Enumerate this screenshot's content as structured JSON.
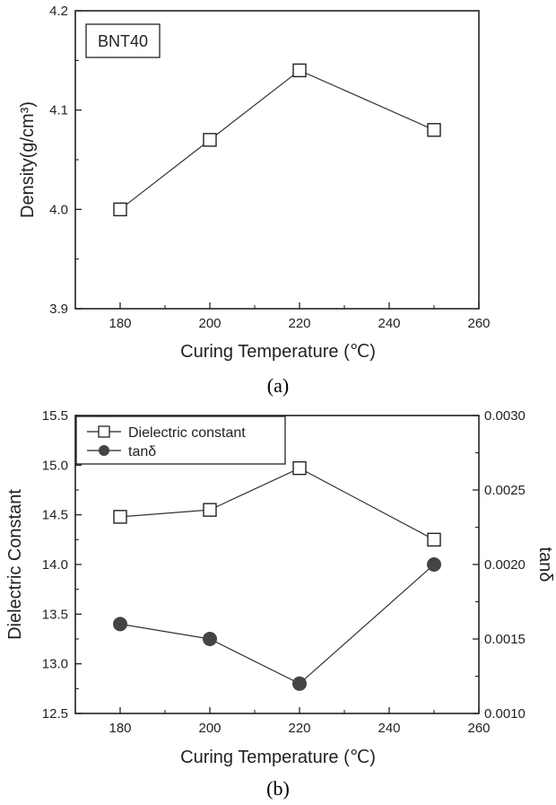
{
  "chart_data": [
    {
      "type": "line",
      "panel_label": "(a)",
      "annotation": "BNT40",
      "xlabel": "Curing Temperature (℃)",
      "ylabel": "Density(g/cm³)",
      "xlim": [
        170,
        260
      ],
      "ylim": [
        3.9,
        4.2
      ],
      "x_ticks": [
        180,
        200,
        220,
        240,
        260
      ],
      "y_ticks": [
        3.9,
        4.0,
        4.1,
        4.2
      ],
      "y_tick_labels": [
        "3.9",
        "4.0",
        "4.1",
        "4.2"
      ],
      "x": [
        180,
        200,
        220,
        250
      ],
      "series": [
        {
          "values": [
            4.0,
            4.07,
            4.14,
            4.08
          ],
          "marker": "open-square"
        }
      ]
    },
    {
      "type": "line",
      "panel_label": "(b)",
      "xlabel": "Curing Temperature (℃)",
      "ylabel": "Dielectric Constant",
      "y2label": "tanδ",
      "xlim": [
        170,
        260
      ],
      "ylim": [
        12.5,
        15.5
      ],
      "y2lim": [
        0.001,
        0.003
      ],
      "x_ticks": [
        180,
        200,
        220,
        240,
        260
      ],
      "y_ticks": [
        12.5,
        13.0,
        13.5,
        14.0,
        14.5,
        15.0,
        15.5
      ],
      "y_tick_labels": [
        "12.5",
        "13.0",
        "13.5",
        "14.0",
        "14.5",
        "15.0",
        "15.5"
      ],
      "y2_ticks": [
        0.001,
        0.0015,
        0.002,
        0.0025,
        0.003
      ],
      "y2_tick_labels": [
        "0.0010",
        "0.0015",
        "0.0020",
        "0.0025",
        "0.0030"
      ],
      "legend_position": "top-left",
      "x": [
        180,
        200,
        220,
        250
      ],
      "series": [
        {
          "name": "Dielectric constant",
          "axis": "left",
          "values": [
            14.48,
            14.55,
            14.97,
            14.25
          ],
          "marker": "open-square"
        },
        {
          "name": "tanδ",
          "axis": "right",
          "values": [
            0.0016,
            0.0015,
            0.0012,
            0.002
          ],
          "marker": "filled-circle"
        }
      ]
    }
  ]
}
